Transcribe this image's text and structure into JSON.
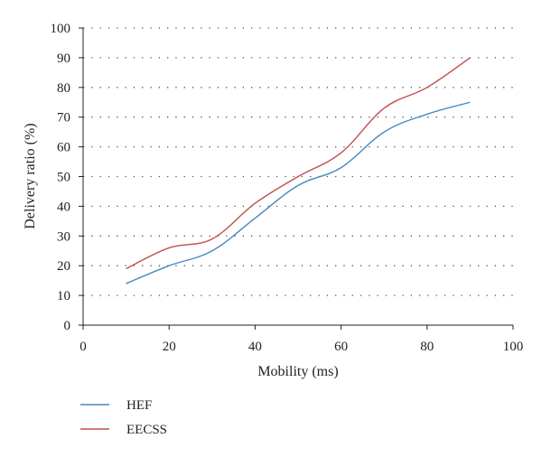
{
  "chart_data": {
    "type": "line",
    "title": "",
    "xlabel": "Mobility (ms)",
    "ylabel": "Delivery ratio (%)",
    "xlim": [
      0,
      100
    ],
    "ylim": [
      0,
      100
    ],
    "xticks": [
      0,
      20,
      40,
      60,
      80,
      100
    ],
    "yticks": [
      0,
      10,
      20,
      30,
      40,
      50,
      60,
      70,
      80,
      90,
      100
    ],
    "grid": "horizontal-dotted",
    "legend_position": "bottom-left",
    "series": [
      {
        "name": "HEF",
        "color": "#4a86c0",
        "x": [
          10,
          20,
          30,
          40,
          50,
          60,
          70,
          80,
          90
        ],
        "y": [
          14,
          20,
          25,
          36,
          47,
          53,
          65,
          71,
          75
        ]
      },
      {
        "name": "EECSS",
        "color": "#c0504d",
        "x": [
          10,
          20,
          30,
          40,
          50,
          60,
          70,
          80,
          90
        ],
        "y": [
          19,
          26,
          29,
          41,
          50,
          58,
          73,
          80,
          90
        ]
      }
    ]
  }
}
